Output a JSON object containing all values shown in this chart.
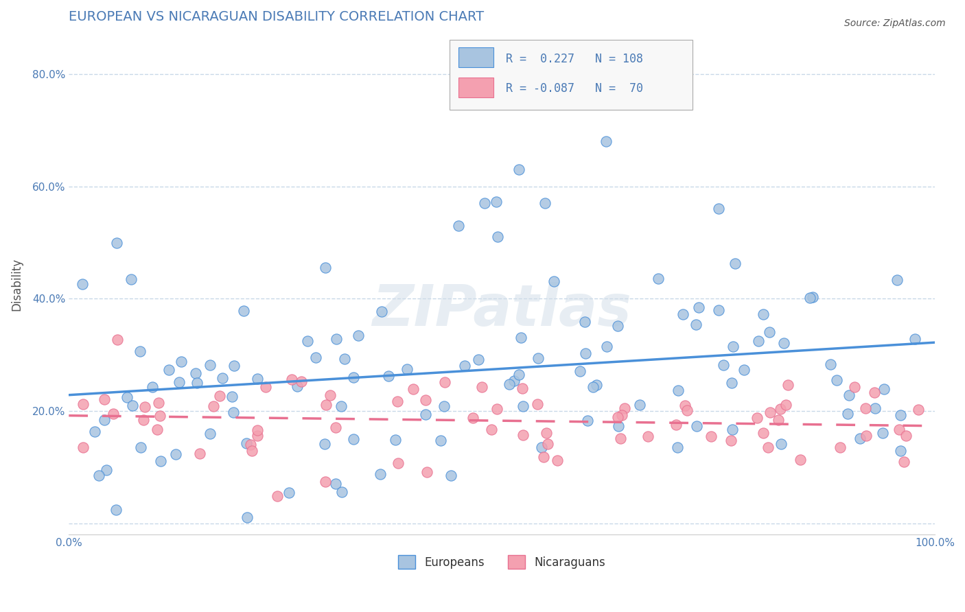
{
  "title": "EUROPEAN VS NICARAGUAN DISABILITY CORRELATION CHART",
  "source": "Source: ZipAtlas.com",
  "ylabel": "Disability",
  "xlim": [
    0.0,
    1.0
  ],
  "ylim": [
    -0.02,
    0.87
  ],
  "european_R": 0.227,
  "european_N": 108,
  "nicaraguan_R": -0.087,
  "nicaraguan_N": 70,
  "european_color": "#a8c4e0",
  "nicaraguan_color": "#f4a0b0",
  "european_line_color": "#4a90d9",
  "nicaraguan_line_color": "#e87090",
  "background_color": "#ffffff",
  "grid_color": "#c8d8e8",
  "title_color": "#4a7ab5",
  "watermark": "ZIPatlas"
}
